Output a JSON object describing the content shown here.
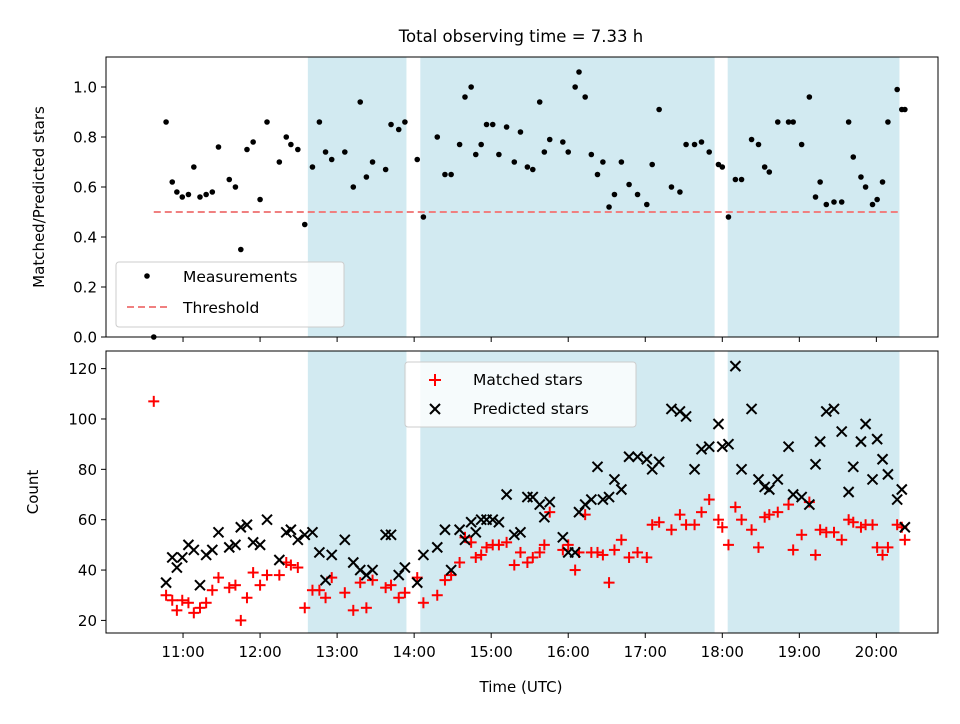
{
  "figure": {
    "title": "Total observing time = 7.33 h",
    "xlabel": "Time (UTC)"
  },
  "colors": {
    "shade": "#add8e6",
    "measurement": "#000000",
    "threshold": "#f08080",
    "matched": "#ff0000",
    "predicted": "#000000"
  },
  "chart_data": [
    {
      "type": "scatter",
      "panel": "top",
      "title": "Total observing time = 7.33 h",
      "ylabel": "Matched/Predicted stars",
      "xlabel": "",
      "x_unit": "hours UTC (decimal)",
      "xlim": [
        10.0,
        20.8
      ],
      "ylim": [
        0.0,
        1.12
      ],
      "yticks": [
        0.0,
        0.2,
        0.4,
        0.6,
        0.8,
        1.0
      ],
      "ytick_labels": [
        "0.0",
        "0.2",
        "0.4",
        "0.6",
        "0.8",
        "1.0"
      ],
      "shaded_intervals": [
        [
          12.62,
          13.9
        ],
        [
          14.08,
          17.9
        ],
        [
          18.07,
          20.3
        ]
      ],
      "legend": {
        "placement": "lower left",
        "entries": [
          "Measurements",
          "Threshold"
        ]
      },
      "threshold": {
        "name": "Threshold",
        "y": 0.5,
        "x_range": [
          10.62,
          20.3
        ],
        "style": "dashed"
      },
      "series": [
        {
          "name": "Measurements",
          "marker": "dot",
          "x": [
            10.62,
            10.78,
            10.86,
            10.92,
            10.99,
            11.07,
            11.14,
            11.22,
            11.3,
            11.38,
            11.46,
            11.6,
            11.68,
            11.75,
            11.83,
            11.91,
            12.0,
            12.09,
            12.25,
            12.34,
            12.4,
            12.49,
            12.58,
            12.68,
            12.77,
            12.85,
            12.93,
            13.1,
            13.21,
            13.3,
            13.38,
            13.46,
            13.63,
            13.7,
            13.8,
            13.88,
            14.04,
            14.12,
            14.3,
            14.4,
            14.48,
            14.59,
            14.66,
            14.74,
            14.8,
            14.87,
            14.94,
            15.02,
            15.1,
            15.2,
            15.3,
            15.38,
            15.47,
            15.54,
            15.63,
            15.69,
            15.76,
            15.93,
            16.0,
            16.09,
            16.14,
            16.22,
            16.3,
            16.38,
            16.45,
            16.53,
            16.6,
            16.69,
            16.79,
            16.9,
            17.02,
            17.09,
            17.18,
            17.34,
            17.45,
            17.53,
            17.64,
            17.73,
            17.83,
            17.95,
            18.0,
            18.08,
            18.17,
            18.25,
            18.38,
            18.47,
            18.55,
            18.61,
            18.72,
            18.86,
            18.92,
            19.03,
            19.13,
            19.21,
            19.27,
            19.35,
            19.45,
            19.55,
            19.64,
            19.7,
            19.8,
            19.86,
            19.95,
            20.01,
            20.08,
            20.15,
            20.27,
            20.33,
            20.37
          ],
          "y": [
            0.0,
            0.86,
            0.62,
            0.58,
            0.56,
            0.57,
            0.68,
            0.56,
            0.57,
            0.58,
            0.76,
            0.63,
            0.6,
            0.35,
            0.75,
            0.78,
            0.55,
            0.86,
            0.7,
            0.8,
            0.77,
            0.75,
            0.45,
            0.68,
            0.86,
            0.74,
            0.71,
            0.74,
            0.6,
            0.94,
            0.64,
            0.7,
            0.67,
            0.85,
            0.83,
            0.86,
            0.71,
            0.48,
            0.8,
            0.65,
            0.65,
            0.77,
            0.96,
            1.0,
            0.73,
            0.77,
            0.85,
            0.85,
            0.73,
            0.84,
            0.7,
            0.82,
            0.68,
            0.67,
            0.94,
            0.74,
            0.79,
            0.78,
            0.74,
            1.0,
            1.06,
            0.96,
            0.73,
            0.65,
            0.7,
            0.52,
            0.57,
            0.7,
            0.61,
            0.57,
            0.53,
            0.69,
            0.91,
            0.6,
            0.58,
            0.77,
            0.77,
            0.78,
            0.74,
            0.69,
            0.68,
            0.48,
            0.63,
            0.63,
            0.79,
            0.77,
            0.68,
            0.66,
            0.86,
            0.86,
            0.86,
            0.77,
            0.96,
            0.56,
            0.62,
            0.53,
            0.54,
            0.54,
            0.86,
            0.72,
            0.64,
            0.6,
            0.53,
            0.55,
            0.62,
            0.86,
            0.99,
            0.91,
            0.91
          ]
        }
      ]
    },
    {
      "type": "scatter",
      "panel": "bottom",
      "title": "",
      "ylabel": "Count",
      "xlabel": "Time (UTC)",
      "x_unit": "hours UTC (decimal)",
      "xlim": [
        10.0,
        20.8
      ],
      "ylim": [
        15,
        127
      ],
      "yticks": [
        20,
        40,
        60,
        80,
        100,
        120
      ],
      "ytick_labels": [
        "20",
        "40",
        "60",
        "80",
        "100",
        "120"
      ],
      "xticks": [
        11,
        12,
        13,
        14,
        15,
        16,
        17,
        18,
        19,
        20
      ],
      "xtick_labels": [
        "11:00",
        "12:00",
        "13:00",
        "14:00",
        "15:00",
        "16:00",
        "17:00",
        "18:00",
        "19:00",
        "20:00"
      ],
      "shaded_intervals": [
        [
          12.62,
          13.9
        ],
        [
          14.08,
          17.9
        ],
        [
          18.07,
          20.3
        ]
      ],
      "legend": {
        "placement": "upper center",
        "entries": [
          "Matched stars",
          "Predicted stars"
        ]
      },
      "series": [
        {
          "name": "Matched stars",
          "marker": "plus",
          "x": [
            10.62,
            10.78,
            10.86,
            10.92,
            10.99,
            11.07,
            11.14,
            11.22,
            11.3,
            11.38,
            11.46,
            11.6,
            11.68,
            11.75,
            11.83,
            11.91,
            12.0,
            12.09,
            12.25,
            12.34,
            12.4,
            12.49,
            12.58,
            12.68,
            12.77,
            12.85,
            12.93,
            13.1,
            13.21,
            13.3,
            13.38,
            13.46,
            13.63,
            13.7,
            13.8,
            13.88,
            14.04,
            14.12,
            14.3,
            14.4,
            14.48,
            14.59,
            14.66,
            14.74,
            14.8,
            14.87,
            14.94,
            15.02,
            15.1,
            15.2,
            15.3,
            15.38,
            15.47,
            15.54,
            15.63,
            15.69,
            15.76,
            15.93,
            16.0,
            16.09,
            16.14,
            16.22,
            16.3,
            16.38,
            16.45,
            16.53,
            16.6,
            16.69,
            16.79,
            16.9,
            17.02,
            17.09,
            17.18,
            17.34,
            17.45,
            17.53,
            17.64,
            17.73,
            17.83,
            17.95,
            18.0,
            18.08,
            18.17,
            18.25,
            18.38,
            18.47,
            18.55,
            18.61,
            18.72,
            18.86,
            18.92,
            19.03,
            19.13,
            19.21,
            19.27,
            19.35,
            19.45,
            19.55,
            19.64,
            19.7,
            19.8,
            19.86,
            19.95,
            20.01,
            20.08,
            20.15,
            20.27,
            20.33,
            20.37
          ],
          "y": [
            107,
            30,
            28,
            24,
            28,
            27,
            23,
            25,
            27,
            32,
            37,
            33,
            34,
            20,
            29,
            39,
            34,
            38,
            38,
            43,
            42,
            41,
            25,
            32,
            32,
            29,
            37,
            31,
            24,
            35,
            25,
            36,
            33,
            34,
            29,
            31,
            37,
            27,
            30,
            36,
            38,
            43,
            53,
            51,
            45,
            46,
            49,
            50,
            50,
            51,
            42,
            47,
            43,
            45,
            47,
            50,
            63,
            48,
            50,
            40,
            47,
            62,
            47,
            47,
            46,
            35,
            48,
            52,
            45,
            47,
            45,
            58,
            59,
            56,
            62,
            58,
            58,
            63,
            68,
            60,
            57,
            50,
            65,
            60,
            56,
            49,
            61,
            62,
            63,
            66,
            48,
            54,
            67,
            46,
            56,
            55,
            55,
            52,
            60,
            59,
            57,
            58,
            58,
            49,
            46,
            49,
            58,
            57,
            52
          ]
        },
        {
          "name": "Predicted stars",
          "marker": "x",
          "x": [
            10.78,
            10.86,
            10.92,
            10.99,
            11.07,
            11.14,
            11.22,
            11.3,
            11.38,
            11.46,
            11.6,
            11.68,
            11.75,
            11.83,
            11.91,
            12.0,
            12.09,
            12.25,
            12.34,
            12.4,
            12.49,
            12.58,
            12.68,
            12.77,
            12.85,
            12.93,
            13.1,
            13.21,
            13.3,
            13.38,
            13.46,
            13.63,
            13.7,
            13.8,
            13.88,
            14.04,
            14.12,
            14.3,
            14.4,
            14.48,
            14.59,
            14.66,
            14.74,
            14.8,
            14.87,
            14.94,
            15.02,
            15.1,
            15.2,
            15.3,
            15.38,
            15.47,
            15.54,
            15.63,
            15.69,
            15.76,
            15.93,
            16.0,
            16.09,
            16.14,
            16.22,
            16.3,
            16.38,
            16.45,
            16.53,
            16.6,
            16.69,
            16.79,
            16.9,
            17.02,
            17.09,
            17.18,
            17.34,
            17.45,
            17.53,
            17.64,
            17.73,
            17.83,
            17.95,
            18.0,
            18.08,
            18.17,
            18.25,
            18.38,
            18.47,
            18.55,
            18.61,
            18.72,
            18.86,
            18.92,
            19.03,
            19.13,
            19.21,
            19.27,
            19.35,
            19.45,
            19.55,
            19.64,
            19.7,
            19.8,
            19.86,
            19.95,
            20.01,
            20.08,
            20.15,
            20.27,
            20.33,
            20.37
          ],
          "y": [
            35,
            45,
            41,
            45,
            50,
            48,
            34,
            46,
            48,
            55,
            49,
            50,
            57,
            58,
            51,
            50,
            60,
            44,
            55,
            56,
            52,
            54,
            55,
            47,
            36,
            46,
            52,
            43,
            40,
            38,
            40,
            54,
            54,
            38,
            41,
            35,
            46,
            49,
            56,
            40,
            56,
            52,
            59,
            55,
            60,
            60,
            60,
            59,
            70,
            54,
            55,
            69,
            69,
            66,
            61,
            67,
            53,
            47,
            47,
            63,
            66,
            68,
            81,
            68,
            69,
            76,
            72,
            85,
            85,
            84,
            80,
            83,
            104,
            103,
            101,
            80,
            88,
            89,
            98,
            89,
            90,
            121,
            80,
            104,
            76,
            73,
            72,
            76,
            89,
            70,
            69,
            66,
            82,
            91,
            103,
            104,
            95,
            71,
            81,
            91,
            98,
            76,
            92,
            84,
            78,
            68,
            72,
            57
          ]
        }
      ]
    }
  ]
}
